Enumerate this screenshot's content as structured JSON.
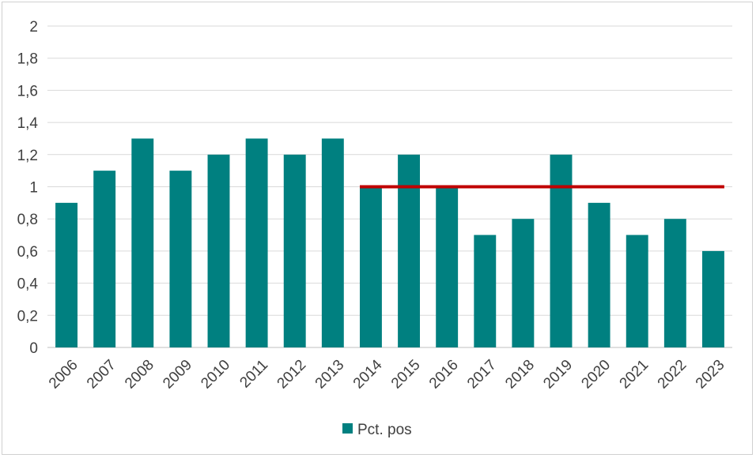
{
  "chart_data": {
    "type": "bar",
    "categories": [
      "2006",
      "2007",
      "2008",
      "2009",
      "2010",
      "2011",
      "2012",
      "2013",
      "2014",
      "2015",
      "2016",
      "2017",
      "2018",
      "2019",
      "2020",
      "2021",
      "2022",
      "2023"
    ],
    "series": [
      {
        "name": "Pct. pos",
        "values": [
          0.9,
          1.1,
          1.3,
          1.1,
          1.2,
          1.3,
          1.2,
          1.3,
          1.0,
          1.2,
          1.0,
          0.7,
          0.8,
          1.2,
          0.9,
          0.7,
          0.8,
          0.6
        ],
        "color": "#008080"
      }
    ],
    "reference_line": {
      "value": 1.0,
      "from_category": "2014",
      "to_category": "2023",
      "color": "#c00000"
    },
    "yticks": [
      "0",
      "0,2",
      "0,4",
      "0,6",
      "0,8",
      "1",
      "1,2",
      "1,4",
      "1,6",
      "1,8",
      "2"
    ],
    "ylim": [
      0,
      2
    ],
    "title": "",
    "xlabel": "",
    "ylabel": "",
    "grid": true,
    "legend_position": "bottom",
    "colors": {
      "bar": "#008080",
      "reference": "#c00000",
      "grid": "#d9d9d9",
      "text": "#404040"
    }
  }
}
